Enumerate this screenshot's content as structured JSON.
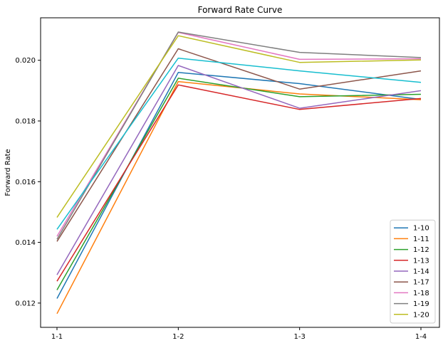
{
  "chart_data": {
    "type": "line",
    "title": "Forward Rate Curve",
    "xlabel": "",
    "ylabel": "Forward Rate",
    "categories": [
      "1-1",
      "1-2",
      "1-3",
      "1-4"
    ],
    "ylim": [
      0.0112,
      0.0214
    ],
    "yticks": [
      "0.012",
      "0.014",
      "0.016",
      "0.018",
      "0.020"
    ],
    "ytick_values": [
      0.012,
      0.014,
      0.016,
      0.018,
      0.02
    ],
    "grid": false,
    "legend_position": "lower-right",
    "series": [
      {
        "name": "1-10",
        "color": "#1f77b4",
        "values": [
          0.01215,
          0.0196,
          0.01923,
          0.01871
        ]
      },
      {
        "name": "1-11",
        "color": "#ff7f0e",
        "values": [
          0.01165,
          0.0193,
          0.01889,
          0.0187
        ]
      },
      {
        "name": "1-12",
        "color": "#2ca02c",
        "values": [
          0.01243,
          0.01941,
          0.0188,
          0.01888
        ]
      },
      {
        "name": "1-13",
        "color": "#d62728",
        "values": [
          0.01272,
          0.01919,
          0.01838,
          0.01874
        ]
      },
      {
        "name": "1-14",
        "color": "#9467bd",
        "values": [
          0.01293,
          0.01983,
          0.01842,
          0.019
        ]
      },
      {
        "name": "1-17",
        "color": "#8c564b",
        "values": [
          0.01403,
          0.02038,
          0.01905,
          0.01965
        ]
      },
      {
        "name": "1-18",
        "color": "#e377c2",
        "values": [
          0.0142,
          0.02092,
          0.02003,
          0.02005
        ]
      },
      {
        "name": "1-19",
        "color": "#7f7f7f",
        "values": [
          0.0141,
          0.02093,
          0.02026,
          0.02009
        ]
      },
      {
        "name": "1-20",
        "color": "#bcbd22",
        "values": [
          0.01482,
          0.02081,
          0.01993,
          0.02001
        ]
      },
      {
        "name": "",
        "color": "#17becf",
        "values": [
          0.01443,
          0.02007,
          0.01965,
          0.01927
        ]
      }
    ]
  }
}
